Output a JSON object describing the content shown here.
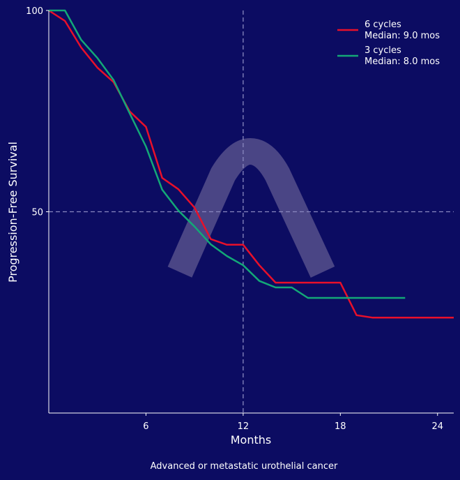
{
  "chart_data": {
    "type": "line",
    "title": "",
    "xlabel": "Months",
    "ylabel": "Progression-Free Survival",
    "caption": "Advanced or metastatic urothelial cancer",
    "xlim": [
      0,
      25
    ],
    "ylim": [
      0,
      100
    ],
    "xticks": [
      6,
      12,
      18,
      24
    ],
    "yticks": [
      50,
      100
    ],
    "reference_lines": {
      "x": 12,
      "y": 50
    },
    "grid": false,
    "legend_position": "top-right",
    "series": [
      {
        "name": "6 cycles",
        "legend_sub": "Median: 9.0 mos",
        "color": "#e8102a",
        "x": [
          0,
          1,
          2,
          3,
          4,
          5,
          6,
          7,
          8,
          9,
          10,
          11,
          12,
          13,
          14,
          15,
          16,
          17,
          18,
          19,
          20,
          21,
          22,
          23,
          24,
          25
        ],
        "y": [
          100,
          97.4,
          90.8,
          85.8,
          82.2,
          74.9,
          71.1,
          58.4,
          55.6,
          51,
          43.2,
          41.8,
          41.8,
          36.7,
          32.4,
          32.4,
          32.4,
          32.4,
          32.4,
          24.3,
          23.7,
          23.7,
          23.7,
          23.7,
          23.7,
          23.7
        ]
      },
      {
        "name": "3 cycles",
        "legend_sub": "Median: 8.0 mos",
        "color": "#13a877",
        "x": [
          0,
          1,
          2,
          3,
          4,
          5,
          6,
          7,
          8,
          9,
          10,
          11,
          12,
          13,
          14,
          15,
          16,
          17,
          18,
          19,
          20,
          21,
          22
        ],
        "y": [
          100,
          100,
          92.7,
          88.2,
          82.7,
          74.4,
          66.2,
          55.5,
          50.3,
          46.3,
          41.9,
          39,
          36.7,
          32.8,
          31.2,
          31.2,
          28.6,
          28.6,
          28.6,
          28.6,
          28.6,
          28.6,
          28.6
        ]
      }
    ]
  },
  "colors": {
    "background": "#0c0c62",
    "watermark": "#4a4585",
    "reference": "#8a88c0"
  }
}
